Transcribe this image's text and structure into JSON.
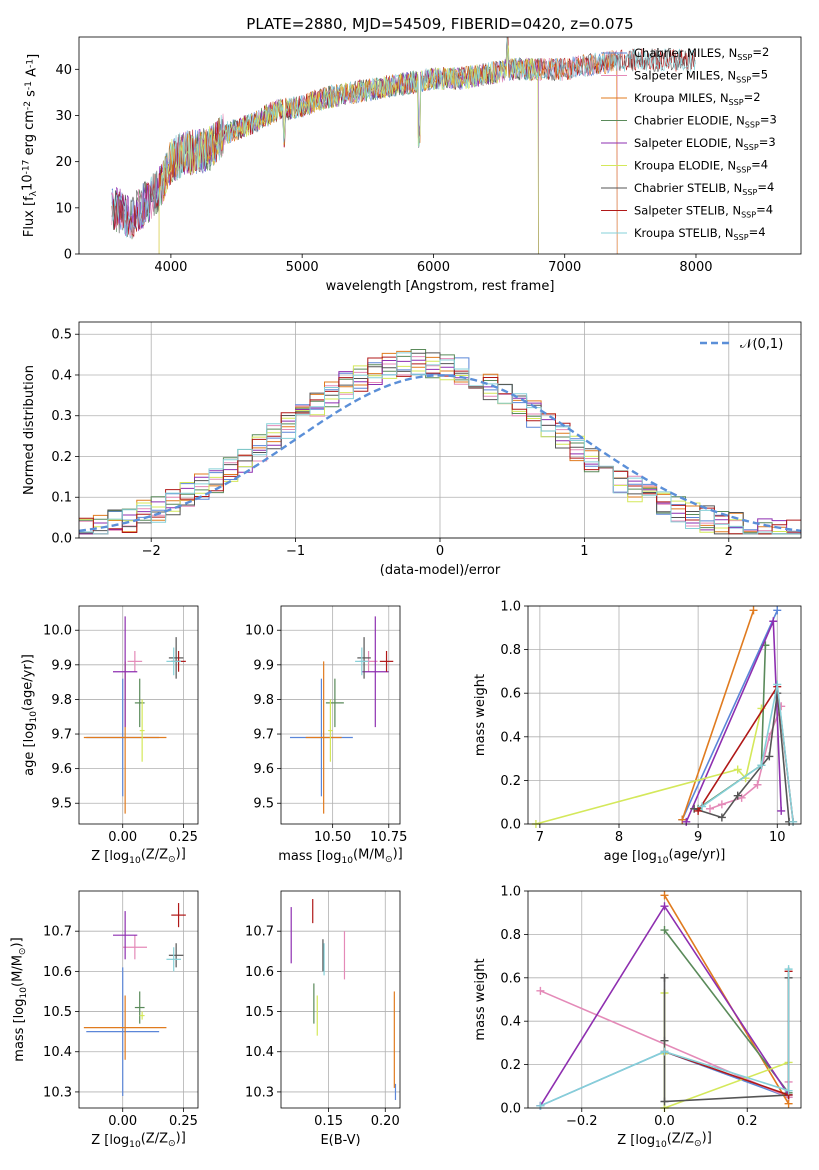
{
  "colors": {
    "chabrier_miles": "#5b86d8",
    "salpeter_miles": "#e48ab8",
    "kroupa_miles": "#e07b1f",
    "chabrier_elodie": "#5a8a5a",
    "salpeter_elodie": "#8e2fb0",
    "kroupa_elodie": "#d4e85a",
    "chabrier_stelib": "#555555",
    "salpeter_stelib": "#b01818",
    "kroupa_stelib": "#86d0d8",
    "normal": "#5b8fd8",
    "grid": "#b0b0b0"
  },
  "chart_data": [
    {
      "id": "spectrum",
      "type": "line",
      "title": "PLATE=2880, MJD=54509, FIBERID=0420, z=0.075",
      "xlabel": "wavelength [Angstrom, rest frame]",
      "ylabel": "Flux [f$_\\lambda$10$^{-17}$ erg cm$^{-2}$ s$^{-1}$ A$^{-1}$]",
      "xlim": [
        3300,
        8800
      ],
      "ylim": [
        0,
        47
      ],
      "xticks": [
        4000,
        5000,
        6000,
        7000,
        8000
      ],
      "yticks": [
        0,
        10,
        20,
        30,
        40
      ],
      "grid": false,
      "legend_position": "right",
      "spectrum_anchor_points": [
        [
          3550,
          10
        ],
        [
          3700,
          8
        ],
        [
          3850,
          12
        ],
        [
          3950,
          16
        ],
        [
          4000,
          20
        ],
        [
          4100,
          22
        ],
        [
          4200,
          22
        ],
        [
          4300,
          23
        ],
        [
          4400,
          26
        ],
        [
          4600,
          28
        ],
        [
          4800,
          31
        ],
        [
          5000,
          32
        ],
        [
          5200,
          34
        ],
        [
          5400,
          35
        ],
        [
          5600,
          36
        ],
        [
          5800,
          37
        ],
        [
          6000,
          38
        ],
        [
          6200,
          38
        ],
        [
          6400,
          39
        ],
        [
          6600,
          40
        ],
        [
          6800,
          40
        ],
        [
          7000,
          40
        ],
        [
          7200,
          41
        ],
        [
          7400,
          42
        ],
        [
          7600,
          42
        ]
      ],
      "series": [
        {
          "name": "Chabrier MILES, N$_{SSP}$=2",
          "key": "chabrier_miles",
          "xmax": 7400
        },
        {
          "name": "Salpeter MILES, N$_{SSP}$=5",
          "key": "salpeter_miles",
          "xmax": 7400
        },
        {
          "name": "Kroupa MILES, N$_{SSP}$=2",
          "key": "kroupa_miles",
          "xmax": 7400
        },
        {
          "name": "Chabrier ELODIE, N$_{SSP}$=3",
          "key": "chabrier_elodie",
          "xmax": 6800
        },
        {
          "name": "Salpeter ELODIE, N$_{SSP}$=3",
          "key": "salpeter_elodie",
          "xmax": 6800
        },
        {
          "name": "Kroupa ELODIE, N$_{SSP}$=4",
          "key": "kroupa_elodie",
          "xmax": 6800
        },
        {
          "name": "Chabrier STELIB, N$_{SSP}$=4",
          "key": "chabrier_stelib",
          "xmax": 8000
        },
        {
          "name": "Salpeter STELIB, N$_{SSP}$=4",
          "key": "salpeter_stelib",
          "xmax": 8000
        },
        {
          "name": "Kroupa STELIB, N$_{SSP}$=4",
          "key": "kroupa_stelib",
          "xmax": 8000
        }
      ]
    },
    {
      "id": "residuals",
      "type": "line",
      "xlabel": "(data-model)/error",
      "ylabel": "Normed distribution",
      "xlim": [
        -2.5,
        2.5
      ],
      "ylim": [
        0,
        0.53
      ],
      "xticks": [
        -2,
        -1,
        0,
        1,
        2
      ],
      "yticks": [
        0.0,
        0.1,
        0.2,
        0.3,
        0.4,
        0.5
      ],
      "grid": true,
      "legend": "$\\mathcal{N}(0,1)$",
      "legend_position": "top-right",
      "bin_width": 0.1,
      "bin_start": -2.5
    },
    {
      "id": "age_vs_Z",
      "type": "scatter",
      "xlabel": "Z [log$_{10}$(Z/Z$_\\odot$)]",
      "ylabel": "age  [log$_{10}$(age/yr)]",
      "xlim": [
        -0.18,
        0.31
      ],
      "ylim": [
        9.44,
        10.07
      ],
      "xticks": [
        0.0,
        0.25
      ],
      "xticklabels": [
        "0.00",
        "0.25"
      ],
      "yticks": [
        9.5,
        9.6,
        9.7,
        9.8,
        9.9,
        10.0
      ],
      "grid": true,
      "points": [
        {
          "key": "chabrier_miles",
          "x": 0.0,
          "xerr": 0.15,
          "y": 9.69,
          "yerr": 0.17
        },
        {
          "key": "salpeter_miles",
          "x": 0.05,
          "xerr": 0.03,
          "y": 9.91,
          "yerr": 0.03
        },
        {
          "key": "kroupa_miles",
          "x": 0.01,
          "xerr": 0.17,
          "y": 9.69,
          "yerr": 0.22
        },
        {
          "key": "chabrier_elodie",
          "x": 0.07,
          "xerr": 0.02,
          "y": 9.79,
          "yerr": 0.07
        },
        {
          "key": "salpeter_elodie",
          "x": 0.01,
          "xerr": 0.05,
          "y": 9.88,
          "yerr": 0.16
        },
        {
          "key": "kroupa_elodie",
          "x": 0.08,
          "xerr": 0.01,
          "y": 9.71,
          "yerr": 0.09
        },
        {
          "key": "chabrier_stelib",
          "x": 0.22,
          "xerr": 0.03,
          "y": 9.92,
          "yerr": 0.06
        },
        {
          "key": "salpeter_stelib",
          "x": 0.23,
          "xerr": 0.03,
          "y": 9.91,
          "yerr": 0.03
        },
        {
          "key": "kroupa_stelib",
          "x": 0.21,
          "xerr": 0.03,
          "y": 9.91,
          "yerr": 0.04
        }
      ]
    },
    {
      "id": "age_vs_mass",
      "type": "scatter",
      "xlabel": "mass [log$_{10}$(M/M$_\\odot$)]",
      "xlim": [
        10.27,
        10.8
      ],
      "ylim": [
        9.44,
        10.07
      ],
      "xticks": [
        10.5,
        10.75
      ],
      "xticklabels": [
        "10.50",
        "10.75"
      ],
      "yticks": [
        9.5,
        9.6,
        9.7,
        9.8,
        9.9,
        10.0
      ],
      "grid": true,
      "points": [
        {
          "key": "chabrier_miles",
          "x": 10.45,
          "xerr": 0.14,
          "y": 9.69,
          "yerr": 0.17
        },
        {
          "key": "salpeter_miles",
          "x": 10.66,
          "xerr": 0.04,
          "y": 9.91,
          "yerr": 0.03
        },
        {
          "key": "kroupa_miles",
          "x": 10.46,
          "xerr": 0.08,
          "y": 9.69,
          "yerr": 0.22
        },
        {
          "key": "chabrier_elodie",
          "x": 10.51,
          "xerr": 0.04,
          "y": 9.79,
          "yerr": 0.07
        },
        {
          "key": "salpeter_elodie",
          "x": 10.69,
          "xerr": 0.06,
          "y": 9.88,
          "yerr": 0.16
        },
        {
          "key": "kroupa_elodie",
          "x": 10.49,
          "xerr": 0.01,
          "y": 9.71,
          "yerr": 0.09
        },
        {
          "key": "chabrier_stelib",
          "x": 10.64,
          "xerr": 0.03,
          "y": 9.92,
          "yerr": 0.06
        },
        {
          "key": "salpeter_stelib",
          "x": 10.74,
          "xerr": 0.03,
          "y": 9.91,
          "yerr": 0.03
        },
        {
          "key": "kroupa_stelib",
          "x": 10.63,
          "xerr": 0.03,
          "y": 9.91,
          "yerr": 0.04
        }
      ]
    },
    {
      "id": "weight_vs_age",
      "type": "line",
      "xlabel": "age  [log$_{10}$(age/yr)]",
      "ylabel": "mass weight",
      "xlim": [
        6.85,
        10.3
      ],
      "ylim": [
        0,
        1.0
      ],
      "xticks": [
        7,
        8,
        9,
        10
      ],
      "yticks": [
        0.0,
        0.2,
        0.4,
        0.6,
        0.8,
        1.0
      ],
      "grid": true,
      "series": [
        {
          "key": "chabrier_miles",
          "x": [
            8.8,
            10.0
          ],
          "y": [
            0.02,
            0.98
          ]
        },
        {
          "key": "salpeter_miles",
          "x": [
            9.15,
            9.3,
            9.55,
            9.75,
            9.9,
            10.05
          ],
          "y": [
            0.07,
            0.09,
            0.12,
            0.18,
            0.4,
            0.54
          ]
        },
        {
          "key": "kroupa_miles",
          "x": [
            8.8,
            9.7
          ],
          "y": [
            0.02,
            0.98
          ]
        },
        {
          "key": "chabrier_elodie",
          "x": [
            9.0,
            9.8,
            9.85
          ],
          "y": [
            0.07,
            0.27,
            0.82
          ]
        },
        {
          "key": "salpeter_elodie",
          "x": [
            8.85,
            9.95,
            10.05
          ],
          "y": [
            0.01,
            0.93,
            0.06
          ]
        },
        {
          "key": "kroupa_elodie",
          "x": [
            6.95,
            9.5,
            9.6,
            9.8
          ],
          "y": [
            0.0,
            0.25,
            0.21,
            0.53
          ]
        },
        {
          "key": "chabrier_stelib",
          "x": [
            8.95,
            9.3,
            9.5,
            9.9,
            10.0,
            10.15
          ],
          "y": [
            0.07,
            0.03,
            0.13,
            0.31,
            0.6,
            0.01
          ]
        },
        {
          "key": "salpeter_stelib",
          "x": [
            9.0,
            10.0,
            10.2
          ],
          "y": [
            0.06,
            0.63,
            0.01
          ]
        },
        {
          "key": "kroupa_stelib",
          "x": [
            9.05,
            9.8,
            10.0,
            10.2
          ],
          "y": [
            0.08,
            0.27,
            0.64,
            0.01
          ]
        }
      ]
    },
    {
      "id": "mass_vs_Z",
      "type": "scatter",
      "xlabel": "Z [log$_{10}$(Z/Z$_\\odot$)]",
      "ylabel": "mass [log$_{10}$(M/M$_\\odot$)]",
      "xlim": [
        -0.18,
        0.31
      ],
      "ylim": [
        10.26,
        10.8
      ],
      "xticks": [
        0.0,
        0.25
      ],
      "xticklabels": [
        "0.00",
        "0.25"
      ],
      "yticks": [
        10.3,
        10.4,
        10.5,
        10.6,
        10.7
      ],
      "grid": true,
      "points": [
        {
          "key": "chabrier_miles",
          "x": 0.0,
          "xerr": 0.15,
          "y": 10.45,
          "yerr": 0.16
        },
        {
          "key": "salpeter_miles",
          "x": 0.05,
          "xerr": 0.05,
          "y": 10.66,
          "yerr": 0.03
        },
        {
          "key": "kroupa_miles",
          "x": 0.01,
          "xerr": 0.17,
          "y": 10.46,
          "yerr": 0.08
        },
        {
          "key": "chabrier_elodie",
          "x": 0.07,
          "xerr": 0.02,
          "y": 10.51,
          "yerr": 0.04
        },
        {
          "key": "salpeter_elodie",
          "x": 0.01,
          "xerr": 0.05,
          "y": 10.69,
          "yerr": 0.06
        },
        {
          "key": "kroupa_elodie",
          "x": 0.08,
          "xerr": 0.01,
          "y": 10.49,
          "yerr": 0.01
        },
        {
          "key": "chabrier_stelib",
          "x": 0.22,
          "xerr": 0.03,
          "y": 10.64,
          "yerr": 0.03
        },
        {
          "key": "salpeter_stelib",
          "x": 0.23,
          "xerr": 0.03,
          "y": 10.74,
          "yerr": 0.03
        },
        {
          "key": "kroupa_stelib",
          "x": 0.21,
          "xerr": 0.03,
          "y": 10.63,
          "yerr": 0.03
        }
      ]
    },
    {
      "id": "mass_vs_ebv",
      "type": "scatter",
      "xlabel": "E(B-V)",
      "xlim": [
        0.108,
        0.213
      ],
      "ylim": [
        10.26,
        10.8
      ],
      "xticks": [
        0.15,
        0.2
      ],
      "xticklabels": [
        "0.15",
        "0.20"
      ],
      "yticks": [
        10.3,
        10.4,
        10.5,
        10.6,
        10.7
      ],
      "grid": true,
      "points": [
        {
          "key": "chabrier_miles",
          "x": 0.209,
          "y": 10.3,
          "yerr": 0.02
        },
        {
          "key": "salpeter_miles",
          "x": 0.164,
          "y": 10.64,
          "yerr": 0.06
        },
        {
          "key": "kroupa_miles",
          "x": 0.208,
          "y": 10.43,
          "yerr": 0.12
        },
        {
          "key": "chabrier_elodie",
          "x": 0.137,
          "y": 10.52,
          "yerr": 0.05
        },
        {
          "key": "salpeter_elodie",
          "x": 0.117,
          "y": 10.69,
          "yerr": 0.07
        },
        {
          "key": "kroupa_elodie",
          "x": 0.14,
          "y": 10.49,
          "yerr": 0.05
        },
        {
          "key": "chabrier_stelib",
          "x": 0.145,
          "y": 10.64,
          "yerr": 0.04
        },
        {
          "key": "salpeter_stelib",
          "x": 0.136,
          "y": 10.75,
          "yerr": 0.03
        },
        {
          "key": "kroupa_stelib",
          "x": 0.146,
          "y": 10.63,
          "yerr": 0.04
        }
      ]
    },
    {
      "id": "weight_vs_Z",
      "type": "line",
      "xlabel": "Z [log$_{10}$(Z/Z$_\\odot$)]",
      "ylabel": "mass weight",
      "xlim": [
        -0.33,
        0.33
      ],
      "ylim": [
        0,
        1.0
      ],
      "xticks": [
        -0.2,
        0.0,
        0.2
      ],
      "xticklabels": [
        "−0.2",
        "0.0",
        "0.2"
      ],
      "yticks": [
        0.0,
        0.2,
        0.4,
        0.6,
        0.8,
        1.0
      ],
      "grid": true,
      "series": [
        {
          "key": "chabrier_miles",
          "x": [
            -0.3,
            0.0,
            0.3
          ],
          "y": [
            0.01,
            0.26,
            0.05
          ]
        },
        {
          "key": "salpeter_miles",
          "x": [
            -0.3,
            0.3,
            0.3
          ],
          "y": [
            0.54,
            0.05,
            0.12
          ]
        },
        {
          "key": "kroupa_miles",
          "x": [
            0.0,
            0.3
          ],
          "y": [
            0.98,
            0.02
          ]
        },
        {
          "key": "chabrier_elodie",
          "x": [
            0.0,
            0.3
          ],
          "y": [
            0.82,
            0.07
          ]
        },
        {
          "key": "salpeter_elodie",
          "x": [
            -0.3,
            0.0,
            0.3
          ],
          "y": [
            0.01,
            0.93,
            0.06
          ]
        },
        {
          "key": "kroupa_elodie",
          "x": [
            0.0,
            0.0,
            0.0,
            0.3
          ],
          "y": [
            0.53,
            0.25,
            0.0,
            0.21
          ]
        },
        {
          "key": "chabrier_stelib",
          "x": [
            0.0,
            0.0,
            0.0,
            0.3,
            0.3
          ],
          "y": [
            0.31,
            0.6,
            0.03,
            0.06,
            0.6
          ]
        },
        {
          "key": "salpeter_stelib",
          "x": [
            0.0,
            0.3,
            0.3
          ],
          "y": [
            0.26,
            0.06,
            0.63
          ]
        },
        {
          "key": "kroupa_stelib",
          "x": [
            -0.3,
            0.0,
            0.3,
            0.3
          ],
          "y": [
            0.01,
            0.26,
            0.08,
            0.64
          ]
        }
      ]
    }
  ]
}
